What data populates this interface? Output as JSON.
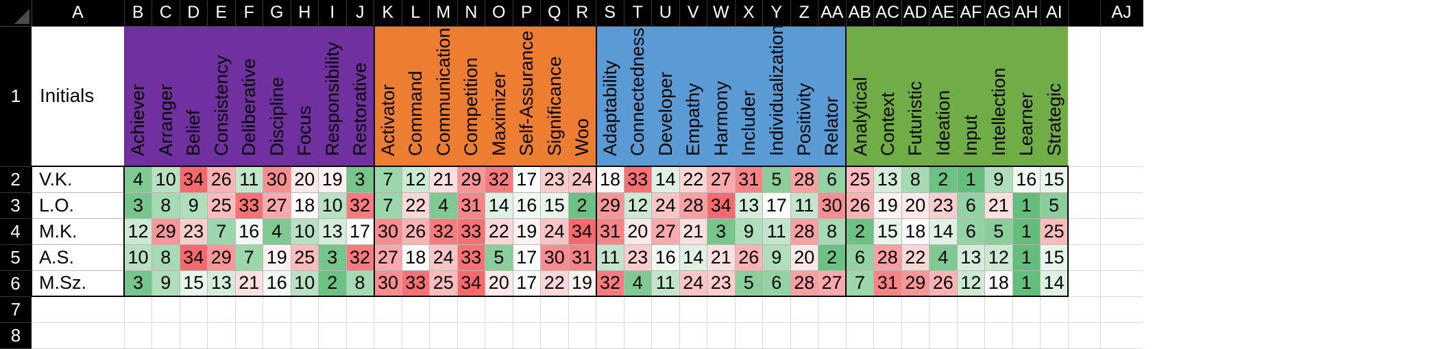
{
  "columns": [
    "A",
    "B",
    "C",
    "D",
    "E",
    "F",
    "G",
    "H",
    "I",
    "J",
    "K",
    "L",
    "M",
    "N",
    "O",
    "P",
    "Q",
    "R",
    "S",
    "T",
    "U",
    "V",
    "W",
    "X",
    "Y",
    "Z",
    "AA",
    "AB",
    "AC",
    "AD",
    "AE",
    "AF",
    "AG",
    "AH",
    "AI",
    "",
    "AJ"
  ],
  "rows": [
    "1",
    "2",
    "3",
    "4",
    "5",
    "6",
    "7",
    "8"
  ],
  "header_label": "Initials",
  "groups": [
    {
      "color": "#7030a0",
      "themes": [
        "Achiever",
        "Arranger",
        "Belief",
        "Consistency",
        "Deliberative",
        "Discipline",
        "Focus",
        "Responsibility",
        "Restorative"
      ]
    },
    {
      "color": "#ed7d31",
      "themes": [
        "Activator",
        "Command",
        "Communication",
        "Competition",
        "Maximizer",
        "Self-Assurance",
        "Significance",
        "Woo"
      ]
    },
    {
      "color": "#5b9bd5",
      "themes": [
        "Adaptability",
        "Connectedness",
        "Developer",
        "Empathy",
        "Harmony",
        "Includer",
        "Individualization",
        "Positivity",
        "Relator"
      ]
    },
    {
      "color": "#70ad47",
      "themes": [
        "Analytical",
        "Context",
        "Futuristic",
        "Ideation",
        "Input",
        "Intellection",
        "Learner",
        "Strategic"
      ]
    }
  ],
  "people": [
    {
      "initials": "V.K.",
      "values": [
        4,
        10,
        34,
        26,
        11,
        30,
        20,
        19,
        3,
        7,
        12,
        21,
        29,
        32,
        17,
        23,
        24,
        18,
        33,
        14,
        22,
        27,
        31,
        5,
        28,
        6,
        25,
        13,
        8,
        2,
        1,
        9,
        16,
        15
      ]
    },
    {
      "initials": "L.O.",
      "values": [
        3,
        8,
        9,
        25,
        33,
        27,
        18,
        10,
        32,
        7,
        22,
        4,
        31,
        14,
        16,
        15,
        2,
        29,
        12,
        24,
        28,
        34,
        13,
        17,
        11,
        30,
        26,
        19,
        20,
        23,
        6,
        21,
        1,
        5
      ]
    },
    {
      "initials": "M.K.",
      "values": [
        12,
        29,
        23,
        7,
        16,
        4,
        10,
        13,
        17,
        30,
        26,
        32,
        33,
        22,
        19,
        24,
        34,
        31,
        20,
        27,
        21,
        3,
        9,
        11,
        28,
        8,
        2,
        15,
        18,
        14,
        6,
        5,
        1,
        25
      ]
    },
    {
      "initials": "A.S.",
      "values": [
        10,
        8,
        34,
        29,
        7,
        19,
        25,
        3,
        32,
        27,
        18,
        24,
        33,
        5,
        17,
        30,
        31,
        11,
        23,
        16,
        14,
        21,
        26,
        9,
        20,
        2,
        6,
        28,
        22,
        4,
        13,
        12,
        1,
        15
      ]
    },
    {
      "initials": "M.Sz.",
      "values": [
        3,
        9,
        15,
        13,
        21,
        16,
        10,
        2,
        8,
        30,
        33,
        25,
        34,
        20,
        17,
        22,
        19,
        32,
        4,
        11,
        24,
        23,
        5,
        6,
        28,
        27,
        7,
        31,
        29,
        26,
        12,
        18,
        1,
        14
      ]
    }
  ],
  "scale": {
    "low_color": "#63be7b",
    "mid_color": "#ffffff",
    "high_color": "#f8696b",
    "min": 1,
    "max": 34
  }
}
